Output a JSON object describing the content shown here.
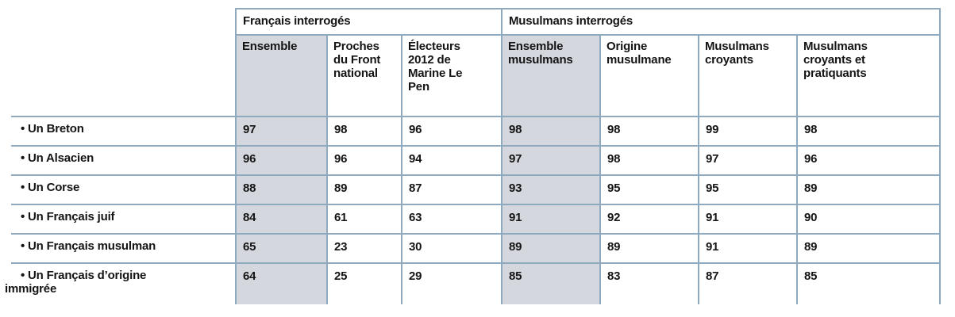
{
  "table": {
    "group_headers": [
      "Français interrogés",
      "Musulmans interrogés"
    ],
    "column_headers": [
      "Ensemble",
      "Proches\ndu Front\nnational",
      "Électeurs\n2012 de\nMarine Le\nPen",
      "Ensemble\nmusulmans",
      "Origine\nmusulmane",
      "Musulmans\ncroyants",
      "Musulmans\ncroyants et\npratiquants"
    ],
    "rows": [
      {
        "label": "• Un Breton",
        "values": [
          "97",
          "98",
          "96",
          "98",
          "98",
          "99",
          "98"
        ]
      },
      {
        "label": "• Un Alsacien",
        "values": [
          "96",
          "96",
          "94",
          "97",
          "98",
          "97",
          "96"
        ]
      },
      {
        "label": "• Un Corse",
        "values": [
          "88",
          "89",
          "87",
          "93",
          "95",
          "95",
          "89"
        ]
      },
      {
        "label": "• Un Français juif",
        "values": [
          "84",
          "61",
          "63",
          "91",
          "92",
          "91",
          "90"
        ]
      },
      {
        "label": "• Un Français musulman",
        "values": [
          "65",
          "23",
          "30",
          "89",
          "89",
          "91",
          "89"
        ]
      },
      {
        "label": "• Un Français d’origine\nimmigrée",
        "values": [
          "64",
          "25",
          "29",
          "85",
          "83",
          "87",
          "85"
        ]
      }
    ],
    "colors": {
      "shaded_column": "#d4d7de",
      "grid_line": "#8fa9bf",
      "text": "#141414"
    }
  }
}
